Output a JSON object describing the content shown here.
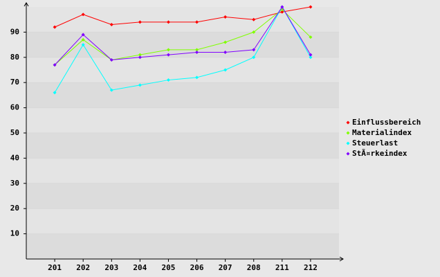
{
  "chart_data": {
    "type": "line",
    "categories": [
      "201",
      "202",
      "203",
      "204",
      "205",
      "206",
      "207",
      "208",
      "211",
      "212"
    ],
    "series": [
      {
        "name": "Einflussbereich",
        "color": "#ff0000",
        "values": [
          92,
          97,
          93,
          94,
          94,
          94,
          96,
          95,
          98,
          100
        ]
      },
      {
        "name": "Materialindex",
        "color": "#80ff00",
        "values": [
          77,
          87,
          79,
          81,
          83,
          83,
          86,
          90,
          99,
          88
        ]
      },
      {
        "name": "Steuerlast",
        "color": "#00ffff",
        "values": [
          66,
          85,
          67,
          69,
          71,
          72,
          75,
          80,
          100,
          80
        ]
      },
      {
        "name": "StÃ¤rkeindex",
        "color": "#8000ff",
        "values": [
          77,
          89,
          79,
          80,
          81,
          82,
          82,
          83,
          100,
          81
        ]
      }
    ],
    "ylim": [
      0,
      100
    ],
    "yticks": [
      10,
      20,
      30,
      40,
      50,
      60,
      70,
      80,
      90
    ],
    "grid": true,
    "legend": "right"
  }
}
